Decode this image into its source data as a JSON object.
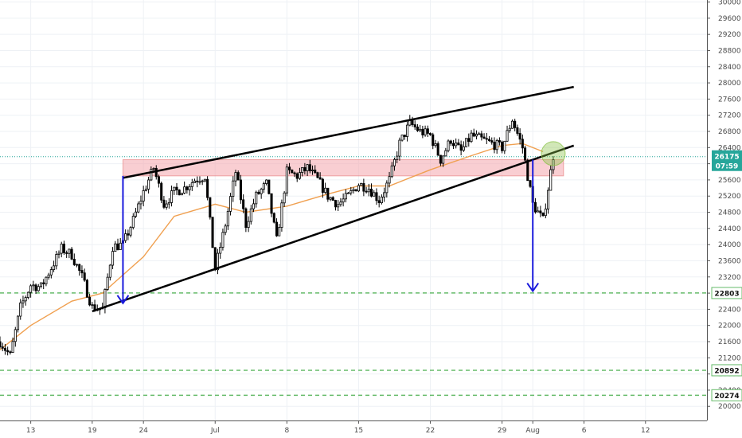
{
  "colors": {
    "up_candle": "#ffffff",
    "down_candle": "#000000",
    "wick": "#000000",
    "ma_line": "#f0a050",
    "pattern_lines": "#000000",
    "arrows": "#1a1adc",
    "resistance_zone": "#f4a6ad",
    "support_lines": "#66bb6a",
    "current_price_line": "#26a69a",
    "grid": "#eef1f5",
    "axis_text": "#4a4a4a",
    "price_badge_bg": "#26a69a",
    "support_badge_bg": "#ffffff",
    "circle_highlight": "#8bc34a"
  },
  "chart_data": {
    "type": "candlestick",
    "x_axis_labels": [
      {
        "label": "13",
        "date": "2019-06-13"
      },
      {
        "label": "19",
        "date": "2019-06-19"
      },
      {
        "label": "24",
        "date": "2019-06-24"
      },
      {
        "label": "Jul",
        "date": "2019-07-01"
      },
      {
        "label": "8",
        "date": "2019-07-08"
      },
      {
        "label": "15",
        "date": "2019-07-15"
      },
      {
        "label": "22",
        "date": "2019-07-22"
      },
      {
        "label": "29",
        "date": "2019-07-29"
      },
      {
        "label": "Aug",
        "date": "2019-08-01"
      },
      {
        "label": "6",
        "date": "2019-08-06"
      },
      {
        "label": "12",
        "date": "2019-08-12"
      }
    ],
    "y_ticks": [
      20000,
      20400,
      20800,
      21200,
      21600,
      22000,
      22400,
      22800,
      23200,
      23600,
      24000,
      24400,
      24800,
      25200,
      25600,
      26000,
      26400,
      26800,
      27200,
      27600,
      28000,
      28400,
      28800,
      29200,
      29600,
      30000
    ],
    "ylim": [
      19650,
      30050
    ],
    "xlim": [
      "2019-06-10",
      "2019-08-18"
    ],
    "price_path": [
      [
        "2019-06-10",
        21600
      ],
      [
        "2019-06-11",
        21250
      ],
      [
        "2019-06-12",
        22450
      ],
      [
        "2019-06-13",
        23000
      ],
      [
        "2019-06-14",
        22950
      ],
      [
        "2019-06-16",
        23900
      ],
      [
        "2019-06-17",
        23750
      ],
      [
        "2019-06-18",
        23200
      ],
      [
        "2019-06-19",
        22450
      ],
      [
        "2019-06-20",
        22400
      ],
      [
        "2019-06-21",
        23950
      ],
      [
        "2019-06-22",
        24000
      ],
      [
        "2019-06-23",
        24600
      ],
      [
        "2019-06-24",
        25300
      ],
      [
        "2019-06-25",
        25900
      ],
      [
        "2019-06-26",
        25000
      ],
      [
        "2019-06-27",
        25300
      ],
      [
        "2019-06-28",
        25400
      ],
      [
        "2019-06-29",
        25600
      ],
      [
        "2019-06-30",
        25700
      ],
      [
        "2019-07-01",
        23400
      ],
      [
        "2019-07-02",
        24500
      ],
      [
        "2019-07-03",
        25800
      ],
      [
        "2019-07-04",
        24500
      ],
      [
        "2019-07-05",
        25200
      ],
      [
        "2019-07-06",
        25500
      ],
      [
        "2019-07-07",
        24100
      ],
      [
        "2019-07-08",
        25800
      ],
      [
        "2019-07-09",
        25700
      ],
      [
        "2019-07-10",
        25900
      ],
      [
        "2019-07-11",
        25600
      ],
      [
        "2019-07-12",
        25200
      ],
      [
        "2019-07-13",
        25000
      ],
      [
        "2019-07-14",
        25200
      ],
      [
        "2019-07-15",
        25500
      ],
      [
        "2019-07-16",
        25400
      ],
      [
        "2019-07-17",
        25100
      ],
      [
        "2019-07-18",
        25600
      ],
      [
        "2019-07-19",
        26500
      ],
      [
        "2019-07-20",
        27000
      ],
      [
        "2019-07-21",
        26800
      ],
      [
        "2019-07-22",
        26700
      ],
      [
        "2019-07-23",
        26100
      ],
      [
        "2019-07-24",
        26600
      ],
      [
        "2019-07-25",
        26300
      ],
      [
        "2019-07-26",
        26700
      ],
      [
        "2019-07-27",
        26600
      ],
      [
        "2019-07-28",
        26500
      ],
      [
        "2019-07-29",
        26400
      ],
      [
        "2019-07-30",
        27100
      ],
      [
        "2019-07-31",
        26400
      ],
      [
        "2019-08-01",
        25000
      ],
      [
        "2019-08-02",
        24600
      ],
      [
        "2019-08-03",
        26200
      ]
    ],
    "moving_average": [
      [
        "2019-06-10",
        21400
      ],
      [
        "2019-06-13",
        22000
      ],
      [
        "2019-06-17",
        22600
      ],
      [
        "2019-06-20",
        22800
      ],
      [
        "2019-06-24",
        23700
      ],
      [
        "2019-06-27",
        24700
      ],
      [
        "2019-07-01",
        25000
      ],
      [
        "2019-07-04",
        24800
      ],
      [
        "2019-07-08",
        24950
      ],
      [
        "2019-07-12",
        25250
      ],
      [
        "2019-07-15",
        25450
      ],
      [
        "2019-07-18",
        25450
      ],
      [
        "2019-07-22",
        25850
      ],
      [
        "2019-07-26",
        26200
      ],
      [
        "2019-07-29",
        26450
      ],
      [
        "2019-07-31",
        26500
      ],
      [
        "2019-08-02",
        26300
      ]
    ],
    "annotations": {
      "wedge_upper": {
        "from": [
          "2019-06-22",
          25650
        ],
        "to": [
          "2019-08-05",
          27900
        ]
      },
      "wedge_lower": {
        "from": [
          "2019-06-19",
          22350
        ],
        "to": [
          "2019-08-05",
          26450
        ]
      },
      "resistance_zone": {
        "from": "2019-06-22",
        "to": "2019-08-04",
        "low": 25700,
        "high": 26100
      },
      "arrow_left": {
        "date": "2019-06-22",
        "from": 25700,
        "to": 22550
      },
      "arrow_right": {
        "date": "2019-08-01",
        "from": 26100,
        "to": 22850
      },
      "breakout_circle": {
        "date": "2019-08-03",
        "price": 26250
      }
    },
    "support_levels": [
      {
        "value": 22803,
        "label": "22803"
      },
      {
        "value": 20892,
        "label": "20892"
      },
      {
        "value": 20274,
        "label": "20274"
      }
    ],
    "current_price": {
      "value": 26175,
      "label": "26175",
      "countdown": "07:59"
    }
  }
}
